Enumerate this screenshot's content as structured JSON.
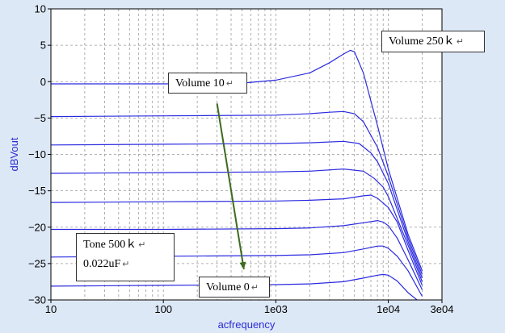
{
  "chart_data": {
    "type": "line",
    "xlabel": "acfrequency",
    "ylabel": "dBVout",
    "xscale": "log",
    "xlim": [
      10,
      30000
    ],
    "ylim": [
      -30,
      10
    ],
    "grid": true,
    "xticks": [
      {
        "value": 10,
        "label": "10"
      },
      {
        "value": 100,
        "label": "100"
      },
      {
        "value": 1000,
        "label": "1e03"
      },
      {
        "value": 10000,
        "label": "1e04"
      },
      {
        "value": 30000,
        "label": "3e04"
      }
    ],
    "yticks": [
      {
        "value": 10,
        "label": "10"
      },
      {
        "value": 5,
        "label": "5"
      },
      {
        "value": 0,
        "label": "0"
      },
      {
        "value": -5,
        "label": "−5"
      },
      {
        "value": -10,
        "label": "−10"
      },
      {
        "value": -15,
        "label": "−15"
      },
      {
        "value": -20,
        "label": "−20"
      },
      {
        "value": -25,
        "label": "−25"
      },
      {
        "value": -30,
        "label": "−30"
      }
    ],
    "series": [
      {
        "x": [
          10,
          100,
          500,
          1000,
          2000,
          3000,
          4000,
          4600,
          5000,
          6000,
          8000,
          10000,
          15000,
          20000
        ],
        "y": [
          -0.3,
          -0.3,
          -0.2,
          0.2,
          1.2,
          2.6,
          3.8,
          4.3,
          4.1,
          1.2,
          -6,
          -12,
          -21,
          -26
        ]
      },
      {
        "x": [
          10,
          100,
          1000,
          2000,
          3000,
          4000,
          5000,
          6000,
          8000,
          10000,
          15000,
          20000
        ],
        "y": [
          -4.8,
          -4.7,
          -4.6,
          -4.4,
          -4.2,
          -4.1,
          -4.4,
          -5.5,
          -9,
          -13,
          -21.5,
          -26.5
        ]
      },
      {
        "x": [
          10,
          100,
          1000,
          2000,
          4000,
          5500,
          7000,
          8000,
          10000,
          15000,
          20000
        ],
        "y": [
          -8.7,
          -8.6,
          -8.5,
          -8.4,
          -8.2,
          -8.5,
          -9.8,
          -11,
          -14,
          -22,
          -27
        ]
      },
      {
        "x": [
          10,
          100,
          1000,
          2000,
          4000,
          6000,
          7500,
          9000,
          10000,
          15000,
          20000
        ],
        "y": [
          -12.6,
          -12.5,
          -12.4,
          -12.3,
          -12.0,
          -12.3,
          -13.3,
          -14.5,
          -15.8,
          -22.5,
          -27.5
        ]
      },
      {
        "x": [
          10,
          100,
          1000,
          2000,
          4000,
          6000,
          7000,
          8000,
          10000,
          12000,
          15000,
          20000
        ],
        "y": [
          -16.6,
          -16.5,
          -16.4,
          -16.3,
          -16.1,
          -15.7,
          -15.6,
          -16.0,
          -17.3,
          -19.3,
          -23.2,
          -28
        ]
      },
      {
        "x": [
          10,
          100,
          1000,
          2000,
          4000,
          6000,
          8000,
          9000,
          10000,
          12000,
          15000,
          20000
        ],
        "y": [
          -20.3,
          -20.3,
          -20.2,
          -20.1,
          -19.8,
          -19.4,
          -19.1,
          -19.3,
          -19.8,
          -21.5,
          -24.5,
          -28.6
        ]
      },
      {
        "x": [
          10,
          100,
          1000,
          2000,
          4000,
          6000,
          8000,
          9000,
          10000,
          12000,
          15000,
          20000
        ],
        "y": [
          -24.1,
          -24.0,
          -23.9,
          -23.8,
          -23.5,
          -23.0,
          -22.6,
          -22.6,
          -22.9,
          -24.0,
          -26.0,
          -29.5
        ]
      },
      {
        "x": [
          10,
          100,
          1000,
          2000,
          4000,
          6000,
          8000,
          9000,
          10000,
          12000,
          15000,
          18000
        ],
        "y": [
          -28.1,
          -28.0,
          -27.9,
          -27.8,
          -27.5,
          -27.0,
          -26.6,
          -26.5,
          -26.6,
          -27.4,
          -29.0,
          -30
        ]
      }
    ],
    "annotations": [
      {
        "id": "vol250",
        "text": "Volume 250ｋ",
        "mark": "↵"
      },
      {
        "id": "vol10",
        "text": "Volume 10",
        "mark": "↵"
      },
      {
        "id": "vol0",
        "text": "Volume 0",
        "mark": "↵"
      },
      {
        "id": "tone",
        "lines": [
          {
            "text": "Tone 500ｋ",
            "mark": "↵"
          },
          {
            "text": "0.022uF",
            "mark": "↵"
          }
        ]
      }
    ],
    "arrow": {
      "from": [
        300,
        -3
      ],
      "to": [
        520,
        -25.8
      ]
    },
    "colors": {
      "series": "#2a2ae0",
      "plot_bg": "#ffffff",
      "frame_bg": "#dde8f6",
      "grid": "#999999",
      "arrow": "#3d6b1f"
    }
  }
}
